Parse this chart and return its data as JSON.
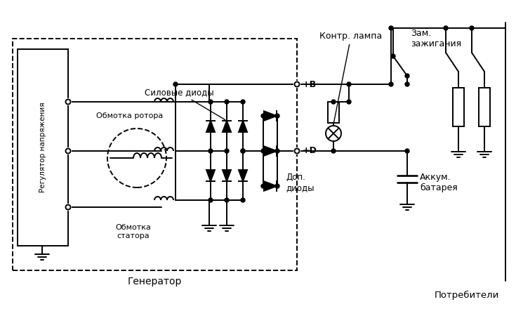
{
  "bg_color": "#ffffff",
  "lc": "#000000",
  "lw": 1.4,
  "labels": {
    "voltage_reg": "Регулятор напряжения",
    "rotor_coil": "Обмотка ротора",
    "stator_coil": "Обмотка\nстатора",
    "power_diodes": "Силовые диоды",
    "add_diodes": "Доп.\nдиоды",
    "generator": "Генератор",
    "control_lamp": "Контр. лампа",
    "ignition": "Зам.\nзажигания",
    "battery": "Аккум.\nбатарея",
    "consumers": "Потребители",
    "plus_B": "+B",
    "plus_D": "+D"
  },
  "figsize": [
    7.35,
    4.5
  ],
  "dpi": 100
}
